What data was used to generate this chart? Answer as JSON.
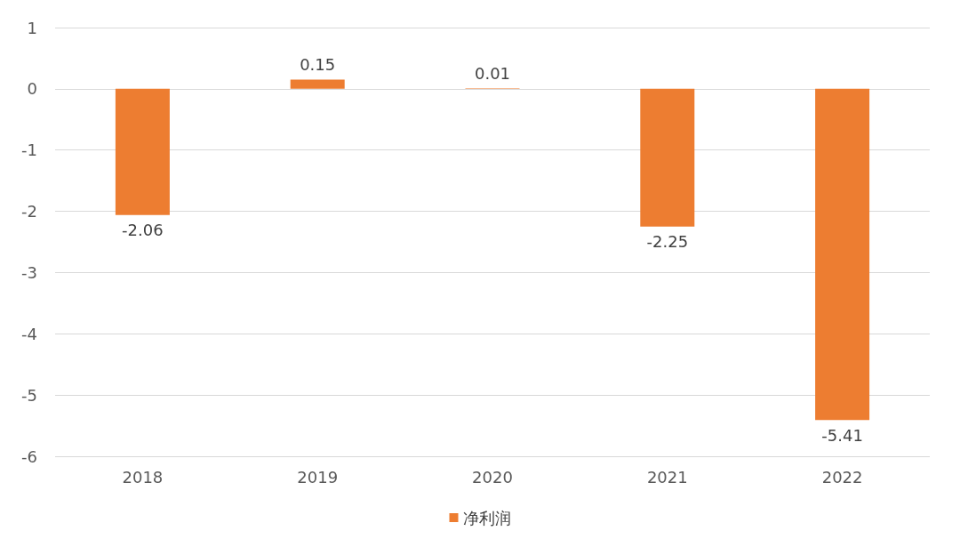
{
  "chart_data": {
    "type": "bar",
    "categories": [
      "2018",
      "2019",
      "2020",
      "2021",
      "2022"
    ],
    "series": [
      {
        "name": "净利润",
        "color": "#ed7d31",
        "values": [
          -2.06,
          0.15,
          0.01,
          -2.25,
          -5.41
        ]
      }
    ],
    "ylim": [
      -6,
      1
    ],
    "yticks": [
      -6,
      -5,
      -4,
      -3,
      -2,
      -1,
      0,
      1
    ],
    "grid": "y",
    "legend": "bottom",
    "data_labels": true
  }
}
